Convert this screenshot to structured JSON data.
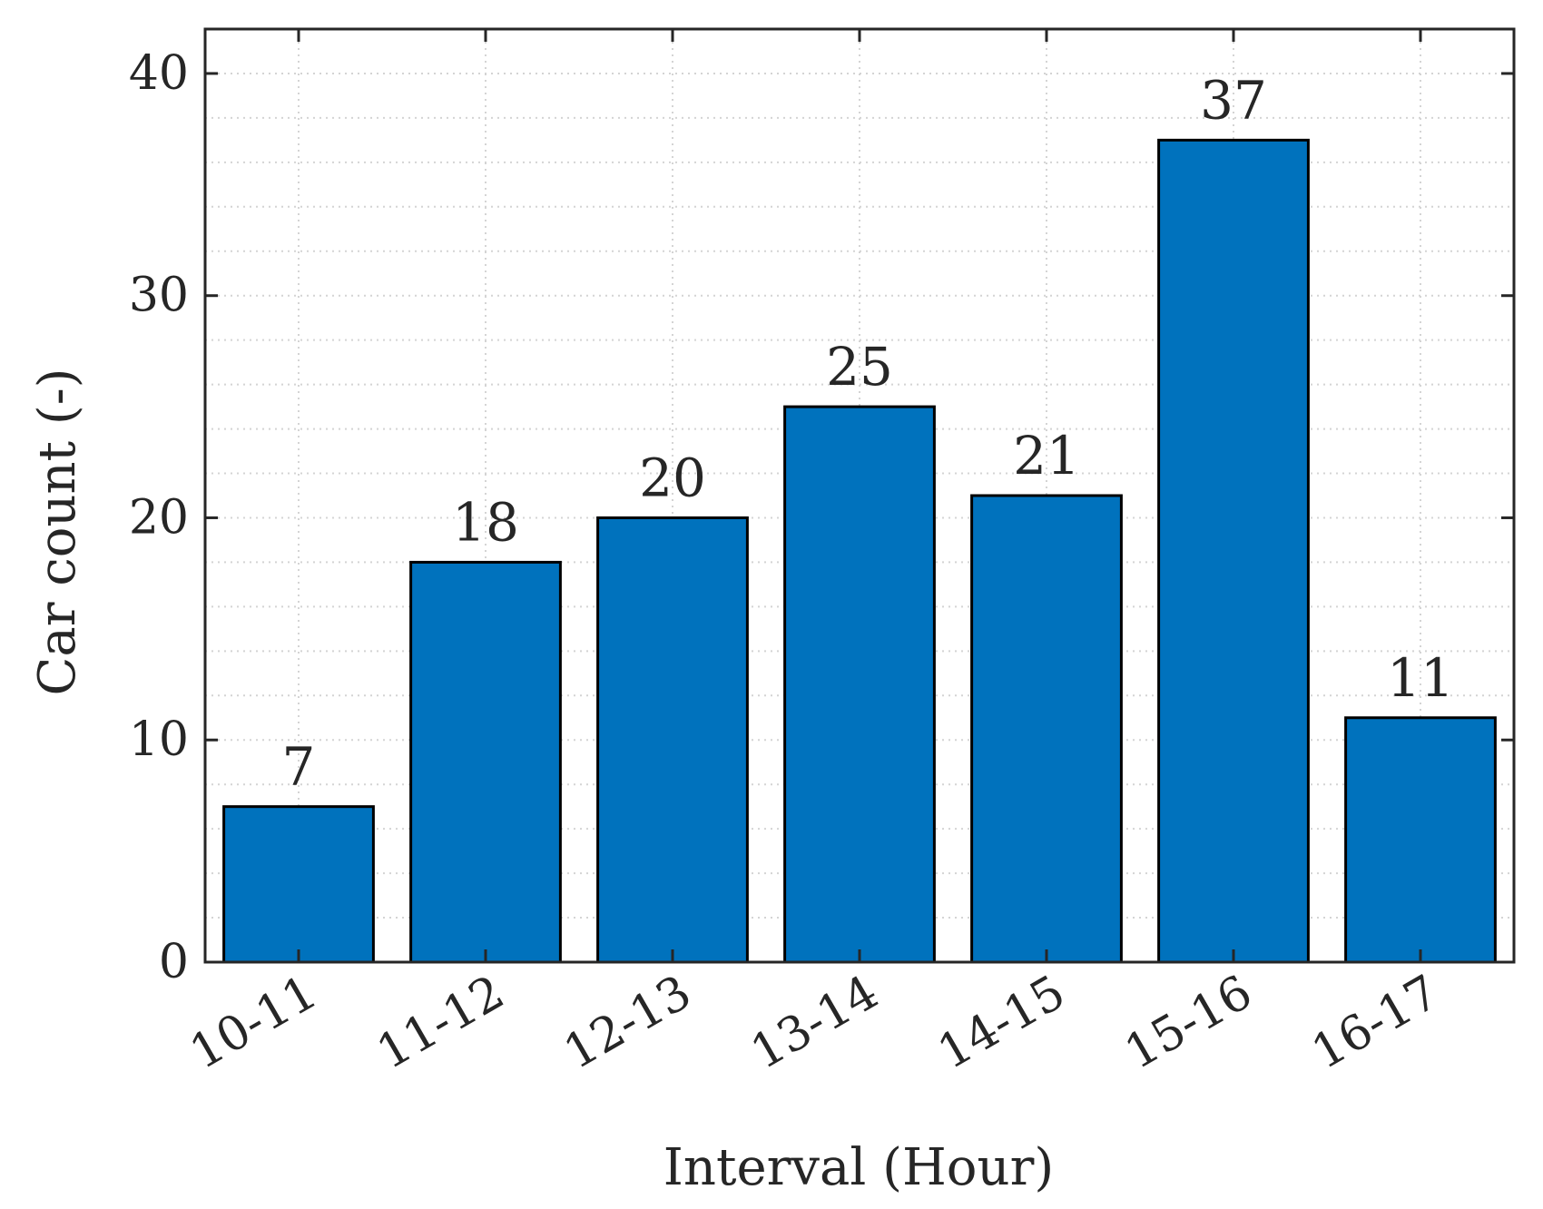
{
  "chart_data": {
    "type": "bar",
    "title": "",
    "xlabel": "Interval (Hour)",
    "ylabel": "Car count (-)",
    "categories": [
      "10-11",
      "11-12",
      "12-13",
      "13-14",
      "14-15",
      "15-16",
      "16-17"
    ],
    "values": [
      7,
      18,
      20,
      25,
      21,
      37,
      11
    ],
    "data_labels": [
      "7",
      "18",
      "20",
      "25",
      "21",
      "37",
      "11"
    ],
    "ylim": [
      0,
      42
    ],
    "yticks": [
      0,
      10,
      20,
      30,
      40
    ],
    "ytick_labels": [
      "0",
      "10",
      "20",
      "30",
      "40"
    ],
    "minor_grid_step": 2,
    "grid": "major and minor, dotted",
    "legend": "none",
    "bar_color": "#0072BD",
    "bar_edge_color": "#000000",
    "axis_color": "#262626"
  }
}
